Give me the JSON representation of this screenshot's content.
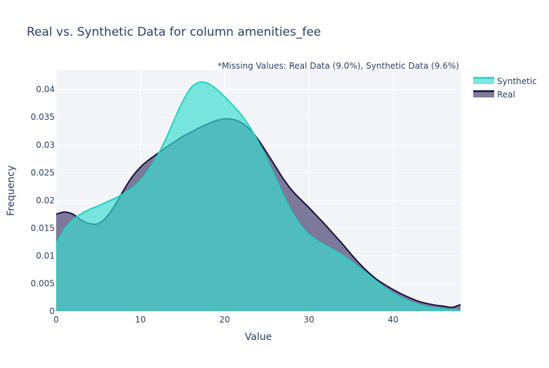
{
  "chart_data": {
    "type": "area",
    "title": "Real vs. Synthetic Data for column amenities_fee",
    "annotation": "*Missing Values: Real Data (9.0%), Synthetic Data (9.6%)",
    "xlabel": "Value",
    "ylabel": "Frequency",
    "xlim": [
      0,
      48
    ],
    "ylim": [
      0,
      0.0435
    ],
    "xticks": [
      "0",
      "10",
      "20",
      "30",
      "40"
    ],
    "xtick_values": [
      0,
      10,
      20,
      30,
      40
    ],
    "yticks": [
      "0",
      "0.005",
      "0.01",
      "0.015",
      "0.02",
      "0.025",
      "0.03",
      "0.035",
      "0.04"
    ],
    "ytick_values": [
      0,
      0.005,
      0.01,
      0.015,
      0.02,
      0.025,
      0.03,
      0.035,
      0.04
    ],
    "grid": true,
    "legend_position": "top-right",
    "series": [
      {
        "name": "Synthetic",
        "color": "#3ddbd0",
        "line_color": "#1ed4c3",
        "x": [
          0,
          1,
          2,
          3,
          4,
          5,
          6,
          7,
          8,
          9,
          10,
          11,
          12,
          13,
          14,
          15,
          16,
          17,
          18,
          19,
          20,
          21,
          22,
          23,
          24,
          25,
          26,
          27,
          28,
          29,
          30,
          31,
          32,
          33,
          34,
          35,
          36,
          37,
          38,
          39,
          40,
          41,
          42,
          43,
          44,
          45,
          46,
          47,
          48
        ],
        "y": [
          0.0122,
          0.0148,
          0.0165,
          0.0176,
          0.0184,
          0.019,
          0.0197,
          0.0204,
          0.0212,
          0.0222,
          0.0236,
          0.0255,
          0.028,
          0.031,
          0.0345,
          0.0378,
          0.0403,
          0.0413,
          0.0411,
          0.0401,
          0.0387,
          0.0371,
          0.0354,
          0.0332,
          0.0305,
          0.0274,
          0.0241,
          0.0208,
          0.0178,
          0.0155,
          0.0138,
          0.0127,
          0.0118,
          0.011,
          0.0101,
          0.009,
          0.0078,
          0.0066,
          0.0054,
          0.0042,
          0.0032,
          0.0024,
          0.0017,
          0.0012,
          0.0008,
          0.0006,
          0.0004,
          0.0003,
          0.0002
        ]
      },
      {
        "name": "Real",
        "color": "#5a567f",
        "line_color": "#150f3e",
        "x": [
          0,
          1,
          2,
          3,
          4,
          5,
          6,
          7,
          8,
          9,
          10,
          11,
          12,
          13,
          14,
          15,
          16,
          17,
          18,
          19,
          20,
          21,
          22,
          23,
          24,
          25,
          26,
          27,
          28,
          29,
          30,
          31,
          32,
          33,
          34,
          35,
          36,
          37,
          38,
          39,
          40,
          41,
          42,
          43,
          44,
          45,
          46,
          47,
          48
        ],
        "y": [
          0.0175,
          0.0179,
          0.0175,
          0.0164,
          0.0158,
          0.0158,
          0.017,
          0.0192,
          0.0218,
          0.0242,
          0.026,
          0.0273,
          0.0284,
          0.0295,
          0.0305,
          0.0315,
          0.0323,
          0.0331,
          0.0338,
          0.0344,
          0.0347,
          0.0346,
          0.034,
          0.0328,
          0.0309,
          0.0286,
          0.0262,
          0.0238,
          0.0218,
          0.0202,
          0.0187,
          0.0171,
          0.0155,
          0.0138,
          0.0121,
          0.0103,
          0.0086,
          0.0071,
          0.0058,
          0.0048,
          0.0039,
          0.0031,
          0.0024,
          0.0018,
          0.0014,
          0.0011,
          0.0009,
          0.0007,
          0.0012
        ]
      }
    ]
  }
}
